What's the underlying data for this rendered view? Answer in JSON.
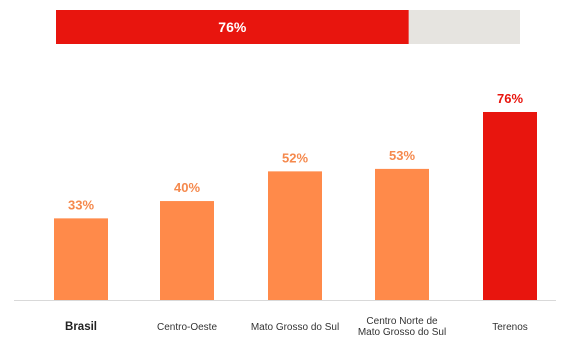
{
  "progress": {
    "value": 76,
    "label": "76%",
    "fill_color": "#E8150E",
    "track_color": "#E6E4E0"
  },
  "chart_data": {
    "type": "bar",
    "categories": [
      [
        "Brasil"
      ],
      [
        "Centro-Oeste"
      ],
      [
        "Mato Grosso do Sul"
      ],
      [
        "Centro Norte de",
        "Mato Grosso do Sul"
      ],
      [
        "Terenos"
      ]
    ],
    "values": [
      33,
      40,
      52,
      53,
      76
    ],
    "value_labels": [
      "33%",
      "40%",
      "52%",
      "53%",
      "76%"
    ],
    "highlight_index": 4,
    "bold_category_index": 0,
    "ylim": [
      0,
      76
    ],
    "grid": false,
    "colors": {
      "default_bar": "#FF8A4A",
      "default_label": "#F5894D",
      "highlight_bar": "#E8150E",
      "highlight_label": "#E8150E",
      "baseline": "#D9D9D9"
    }
  }
}
